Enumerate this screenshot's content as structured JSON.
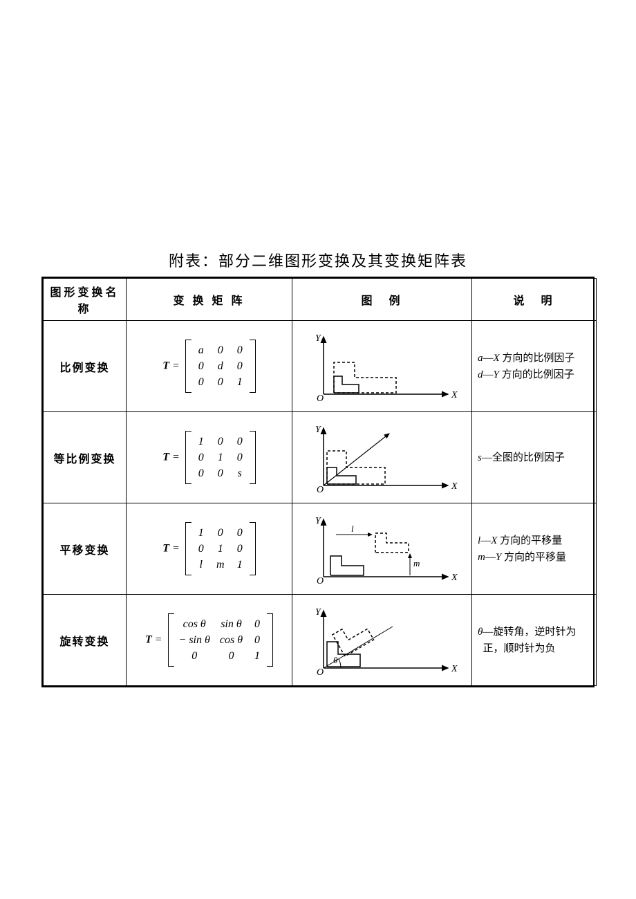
{
  "title": "附表：部分二维图形变换及其变换矩阵表",
  "headers": {
    "name": "图形变换名称",
    "matrix": "变 换 矩 阵",
    "figure": "图　例",
    "desc": "说　明"
  },
  "rows": [
    {
      "name": "比例变换",
      "matrix": [
        [
          "a",
          "0",
          "0"
        ],
        [
          "0",
          "d",
          "0"
        ],
        [
          "0",
          "0",
          "1"
        ]
      ],
      "desc_lines": [
        [
          "a",
          "—",
          "X",
          " 方向的比例因子"
        ],
        [
          "d",
          "—",
          "Y",
          " 方向的比例因子"
        ]
      ]
    },
    {
      "name": "等比例变换",
      "matrix": [
        [
          "1",
          "0",
          "0"
        ],
        [
          "0",
          "1",
          "0"
        ],
        [
          "0",
          "0",
          "s"
        ]
      ],
      "desc_lines": [
        [
          "s",
          "—",
          "全图的比例因子"
        ]
      ]
    },
    {
      "name": "平移变换",
      "matrix": [
        [
          "1",
          "0",
          "0"
        ],
        [
          "0",
          "1",
          "0"
        ],
        [
          "l",
          "m",
          "1"
        ]
      ],
      "desc_lines": [
        [
          "l",
          "—",
          "X",
          " 方向的平移量"
        ],
        [
          "m",
          "—",
          "Y",
          " 方向的平移量"
        ]
      ]
    },
    {
      "name": "旋转变换",
      "matrix": [
        [
          "cos θ",
          "sin θ",
          "0"
        ],
        [
          "− sin θ",
          "cos θ",
          "0"
        ],
        [
          "0",
          "0",
          "1"
        ]
      ],
      "desc_lines": [
        [
          "θ",
          "—",
          "旋转角，逆时针为"
        ],
        [
          "",
          "",
          "正，顺时针为负"
        ]
      ]
    }
  ],
  "labels": {
    "T": "T",
    "eq": "=",
    "O": "O",
    "X": "X",
    "Y": "Y",
    "l": "l",
    "m": "m",
    "theta": "θ"
  },
  "style": {
    "axis_stroke": "#000000",
    "shape_stroke": "#000000",
    "dash": "4,3"
  }
}
